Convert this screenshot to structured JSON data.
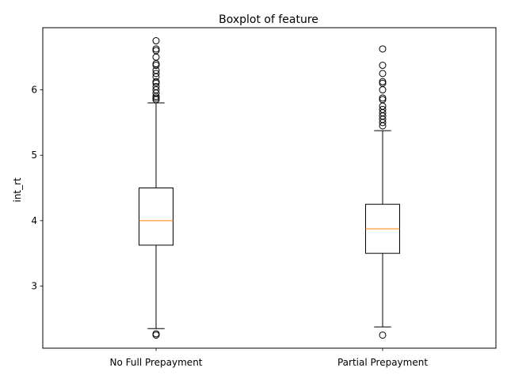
{
  "chart_data": {
    "type": "boxplot",
    "title": "Boxplot of feature",
    "xlabel": "",
    "ylabel": "int_rt",
    "ylim": [
      2.05,
      6.95
    ],
    "yticks": [
      3,
      4,
      5,
      6
    ],
    "ytick_labels": [
      "3",
      "4",
      "5",
      "6"
    ],
    "grid": false,
    "categories": [
      "No Full Prepayment",
      "Partial Prepayment"
    ],
    "boxes": [
      {
        "q1": 3.625,
        "median": 4.0,
        "q3": 4.5,
        "whisker_low": 2.35,
        "whisker_high": 5.8,
        "outliers": [
          2.25,
          2.27,
          5.85,
          5.875,
          5.9,
          5.95,
          6.0,
          6.05,
          6.1,
          6.125,
          6.2,
          6.25,
          6.3,
          6.375,
          6.4,
          6.5,
          6.6,
          6.625,
          6.75
        ]
      },
      {
        "q1": 3.5,
        "median": 3.875,
        "q3": 4.25,
        "whisker_low": 2.375,
        "whisker_high": 5.375,
        "outliers": [
          2.25,
          5.45,
          5.5,
          5.55,
          5.6,
          5.65,
          5.7,
          5.75,
          5.85,
          5.875,
          6.0,
          6.1,
          6.125,
          6.25,
          6.375,
          6.625
        ]
      }
    ],
    "colors": {
      "box": "#000000",
      "median": "#ff7f0e",
      "outlier_edge": "#000000"
    }
  }
}
